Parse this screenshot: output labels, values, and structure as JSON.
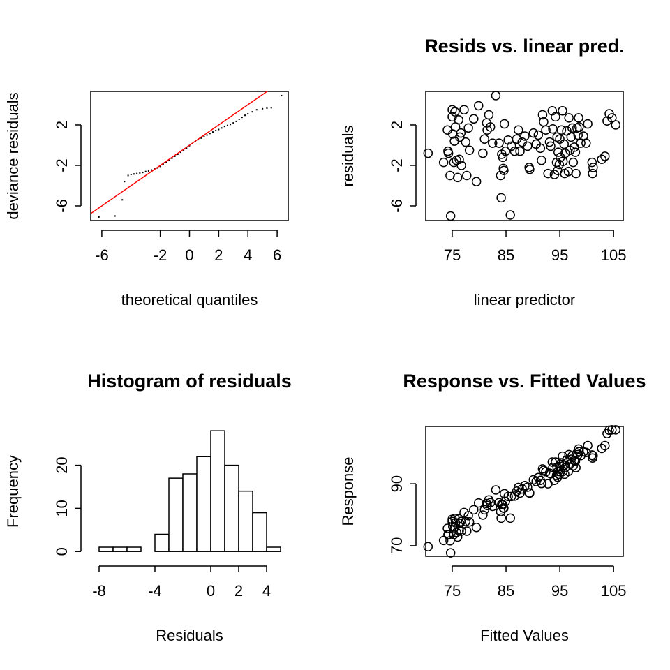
{
  "chart_data": [
    {
      "type": "qq",
      "xlabel": "theoretical quantiles",
      "ylabel": "deviance residuals",
      "x": [
        -6.2,
        -5.1,
        -4.6,
        -4.45,
        -4.2,
        -4.0,
        -3.8,
        -3.6,
        -3.4,
        -3.2,
        -3.0,
        -2.8,
        -2.6,
        -2.4,
        -2.2,
        -2.0,
        -1.8,
        -1.6,
        -1.4,
        -1.2,
        -1.0,
        -0.8,
        -0.6,
        -0.4,
        -0.2,
        0,
        0.2,
        0.4,
        0.6,
        0.8,
        1.0,
        1.2,
        1.4,
        1.6,
        1.8,
        2.0,
        2.2,
        2.4,
        2.6,
        2.8,
        3.0,
        3.2,
        3.4,
        3.6,
        3.8,
        4.0,
        4.3,
        4.6,
        5.0,
        5.3,
        5.6,
        6.3
      ],
      "values": [
        -7.1,
        -7.0,
        -5.4,
        -3.6,
        -3.0,
        -2.9,
        -2.85,
        -2.8,
        -2.75,
        -2.7,
        -2.6,
        -2.55,
        -2.45,
        -2.35,
        -2.25,
        -2.1,
        -1.9,
        -1.7,
        -1.5,
        -1.3,
        -1.1,
        -0.9,
        -0.7,
        -0.5,
        -0.3,
        -0.05,
        0.15,
        0.35,
        0.55,
        0.7,
        0.85,
        1.0,
        1.15,
        1.3,
        1.45,
        1.55,
        1.7,
        1.85,
        1.95,
        2.05,
        2.2,
        2.35,
        2.55,
        2.75,
        2.95,
        3.1,
        3.3,
        3.5,
        3.6,
        3.65,
        3.7,
        4.9
      ],
      "color": "#000000",
      "reference_line": {
        "intercept": 0,
        "slope": 1,
        "color": "#ff0000"
      },
      "xlim": [
        -6.76,
        6.76
      ],
      "ylim": [
        -7.45,
        5.31
      ],
      "xticks": [
        -6,
        -2,
        0,
        2,
        4,
        6
      ],
      "yticks": [
        -6,
        -2,
        2
      ],
      "box": true
    },
    {
      "type": "scatter",
      "title": "Resids vs. linear pred.",
      "xlabel": "linear predictor",
      "ylabel": "residuals",
      "x": [
        70.5,
        73.4,
        74.1,
        74.2,
        74.3,
        74.6,
        74.7,
        75,
        75,
        75.1,
        75.3,
        75.4,
        75.5,
        75.6,
        75.8,
        76,
        76.2,
        76.3,
        76.4,
        76.6,
        76.7,
        77.2,
        77.5,
        77.7,
        78,
        78.2,
        79,
        79.5,
        79.9,
        80.7,
        81,
        81.4,
        81.5,
        81.8,
        82.1,
        82.5,
        83.1,
        83.7,
        84,
        84.1,
        84.2,
        84.4,
        84.5,
        84.6,
        84.7,
        84.9,
        85.4,
        85.8,
        86,
        86.6,
        87,
        87.3,
        87.6,
        88,
        88.5,
        89,
        89.3,
        89.4,
        90.1,
        90.6,
        91,
        91.4,
        91.6,
        91.8,
        92,
        92.4,
        92.8,
        93.1,
        93.3,
        93.6,
        93.7,
        94,
        94.2,
        94.4,
        94.5,
        94.6,
        94.7,
        94.9,
        95,
        95.1,
        95.3,
        95.5,
        95.6,
        95.8,
        95.9,
        96,
        96.3,
        96.6,
        96.7,
        96.9,
        97.1,
        97.3,
        97.5,
        97.7,
        97.9,
        98,
        98.2,
        98.4,
        98.5,
        98.6,
        98.9,
        99.4,
        99.9,
        100.2,
        101,
        101.1,
        101.2,
        102.8,
        103.4,
        103.8,
        104.2,
        104.7,
        105.4
      ],
      "values": [
        -0.8,
        -1.7,
        1.5,
        -0.6,
        -0.8,
        -3,
        -7,
        3.5,
        2.8,
        1.1,
        -1.7,
        0.4,
        3.3,
        1.8,
        -1.5,
        -3.2,
        2.5,
        -1.4,
        0.8,
        1.2,
        -2,
        3.5,
        0.3,
        -3,
        1.7,
        -0.5,
        2.6,
        -3.6,
        3.9,
        -0.8,
        0.6,
        2.2,
        1.5,
        3,
        1.8,
        0.2,
        4.9,
        0.2,
        -3,
        -5.2,
        -0.9,
        -1.2,
        -2.3,
        -2.5,
        2.1,
        -0.6,
        0.5,
        -6.9,
        -0.1,
        -0.6,
        0.6,
        1.5,
        -0.6,
        0.3,
        0.9,
        -0.1,
        -2.2,
        -2.4,
        1.2,
        0.1,
        1,
        -0.3,
        -1.5,
        3,
        2.3,
        1.5,
        -2.8,
        0.3,
        -0.1,
        3.4,
        1.6,
        -2.9,
        2.8,
        -1.7,
        0.8,
        -2.5,
        -0.7,
        -1.9,
        0.6,
        -1.2,
        1.5,
        3.4,
        -1.6,
        0.1,
        -2.8,
        -0.8,
        1.4,
        -2.6,
        2.7,
        -0.5,
        0.8,
        1.7,
        -1.7,
        -0.2,
        -0.7,
        -2.8,
        1.7,
        1,
        2.7,
        1.8,
        0.2,
        0.9,
        0.2,
        2.1,
        -1.7,
        -2.8,
        -2.2,
        -1.4,
        -1.1,
        2.4,
        3.1,
        2.7,
        2
      ],
      "color": "#000000",
      "xlim": [
        70.07,
        106.8
      ],
      "ylim": [
        -7.45,
        5.31
      ],
      "xticks": [
        75,
        85,
        95,
        105
      ],
      "yticks": [
        -6,
        -2,
        2
      ],
      "box": true
    },
    {
      "type": "histogram",
      "title": "Histogram of residuals",
      "xlabel": "Residuals",
      "ylabel": "Frequency",
      "bins": [
        -8,
        -7,
        -6,
        -5,
        -4,
        -3,
        -2,
        -1,
        0,
        1,
        2,
        3,
        4,
        5
      ],
      "values": [
        1,
        1,
        1,
        0,
        4,
        17,
        18,
        22,
        28,
        20,
        14,
        9,
        1
      ],
      "color": "#ffffff",
      "xlim": [
        -8.6,
        5.55
      ],
      "ylim": [
        -1.1,
        29
      ],
      "xticks": [
        -8,
        -4,
        0,
        2,
        4
      ],
      "yticks": [
        0,
        10,
        20
      ],
      "box": false
    },
    {
      "type": "scatter",
      "title": "Response vs. Fitted Values",
      "xlabel": "Fitted Values",
      "ylabel": "Response",
      "x": [
        70.5,
        73.4,
        74.1,
        74.2,
        74.3,
        74.6,
        74.7,
        75,
        75,
        75.1,
        75.3,
        75.4,
        75.5,
        75.6,
        75.8,
        76,
        76.2,
        76.3,
        76.4,
        76.6,
        76.7,
        77.2,
        77.5,
        77.7,
        78,
        78.2,
        79,
        79.5,
        79.9,
        80.7,
        81,
        81.4,
        81.5,
        81.8,
        82.1,
        82.5,
        83.1,
        83.7,
        84,
        84.1,
        84.2,
        84.4,
        84.5,
        84.6,
        84.7,
        84.9,
        85.4,
        85.8,
        86,
        86.6,
        87,
        87.3,
        87.6,
        88,
        88.5,
        89,
        89.3,
        89.4,
        90.1,
        90.6,
        91,
        91.4,
        91.6,
        91.8,
        92,
        92.4,
        92.8,
        93.1,
        93.3,
        93.6,
        93.7,
        94,
        94.2,
        94.4,
        94.5,
        94.6,
        94.7,
        94.9,
        95,
        95.1,
        95.3,
        95.5,
        95.6,
        95.8,
        95.9,
        96,
        96.3,
        96.6,
        96.7,
        96.9,
        97.1,
        97.3,
        97.5,
        97.7,
        97.9,
        98,
        98.2,
        98.4,
        98.5,
        98.6,
        98.9,
        99.4,
        99.9,
        100.2,
        101,
        101.1,
        101.2,
        102.8,
        103.4,
        103.8,
        104.2,
        104.7,
        105.4
      ],
      "values": [
        69.7,
        71.7,
        75.6,
        73.6,
        73.5,
        71.6,
        67.7,
        78.5,
        77.8,
        76.2,
        73.6,
        75.8,
        78.8,
        77.4,
        74.3,
        72.8,
        78.7,
        74.9,
        77.2,
        77.8,
        74.7,
        80.7,
        77.8,
        74.7,
        79.7,
        77.7,
        81.6,
        75.9,
        83.8,
        79.9,
        81.6,
        83.6,
        83,
        84.8,
        83.9,
        82.7,
        88,
        83.9,
        81,
        78.9,
        83.3,
        83.2,
        82.2,
        82.1,
        86.8,
        84.3,
        85.9,
        78.9,
        85.9,
        86,
        87.6,
        88.8,
        87,
        88.3,
        89.4,
        88.9,
        87.1,
        87,
        91.3,
        90.7,
        92,
        91.1,
        90.1,
        94.8,
        94.3,
        93.9,
        90,
        93.4,
        93.2,
        97,
        95.3,
        91.1,
        97,
        92.7,
        95.3,
        92.1,
        94,
        93,
        95.6,
        93.9,
        96.8,
        98.9,
        94,
        95.9,
        93.1,
        95.2,
        97.7,
        94,
        99.4,
        96.4,
        97.9,
        99,
        95.8,
        97.5,
        97.2,
        95.2,
        99.9,
        99.4,
        101.2,
        100.4,
        99.1,
        100.3,
        100.1,
        102.3,
        99.3,
        98.3,
        99,
        101.4,
        102.3,
        106.2,
        107.3,
        107.4,
        107.4
      ],
      "color": "#000000",
      "xlim": [
        70.07,
        106.8
      ],
      "ylim": [
        66.6,
        108.5
      ],
      "xticks": [
        75,
        85,
        95,
        105
      ],
      "yticks": [
        70,
        90
      ],
      "box": true
    }
  ]
}
